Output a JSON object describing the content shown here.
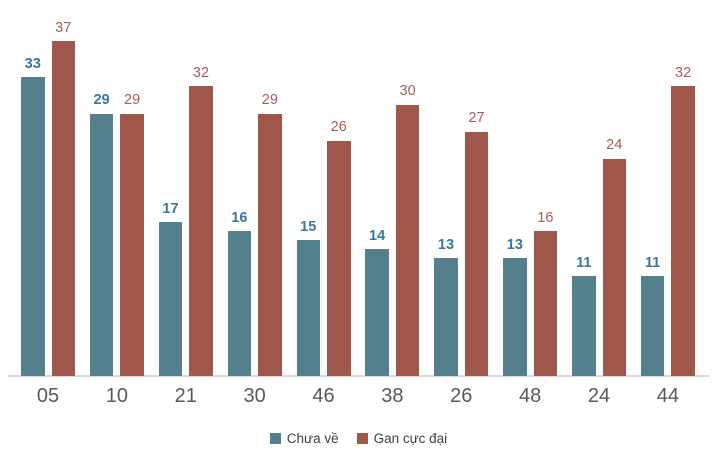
{
  "chart_data": {
    "type": "bar",
    "title": "",
    "xlabel": "",
    "ylabel": "",
    "categories": [
      "05",
      "10",
      "21",
      "30",
      "46",
      "38",
      "26",
      "48",
      "24",
      "44"
    ],
    "series": [
      {
        "name": "Chưa về",
        "values": [
          33,
          29,
          17,
          16,
          15,
          14,
          13,
          13,
          11,
          11
        ],
        "color": "#54808e",
        "label_color": "#38789a",
        "label_bold": true
      },
      {
        "name": "Gan cực đại",
        "values": [
          37,
          29,
          32,
          29,
          26,
          30,
          27,
          16,
          24,
          32
        ],
        "color": "#9e574a",
        "label_color": "#a55d56",
        "label_bold": false
      }
    ],
    "ylim": [
      0,
      41.5
    ],
    "grid": false,
    "legend_position": "bottom",
    "data_labels": true
  },
  "colors": {
    "series1": "#54808e",
    "series2": "#9e574a",
    "series1_label": "#38789a",
    "series2_label": "#a55d56",
    "axis_label": "#595959",
    "axis_line": "#d9d9d9",
    "legend_text": "#404040",
    "background": "#ffffff"
  }
}
